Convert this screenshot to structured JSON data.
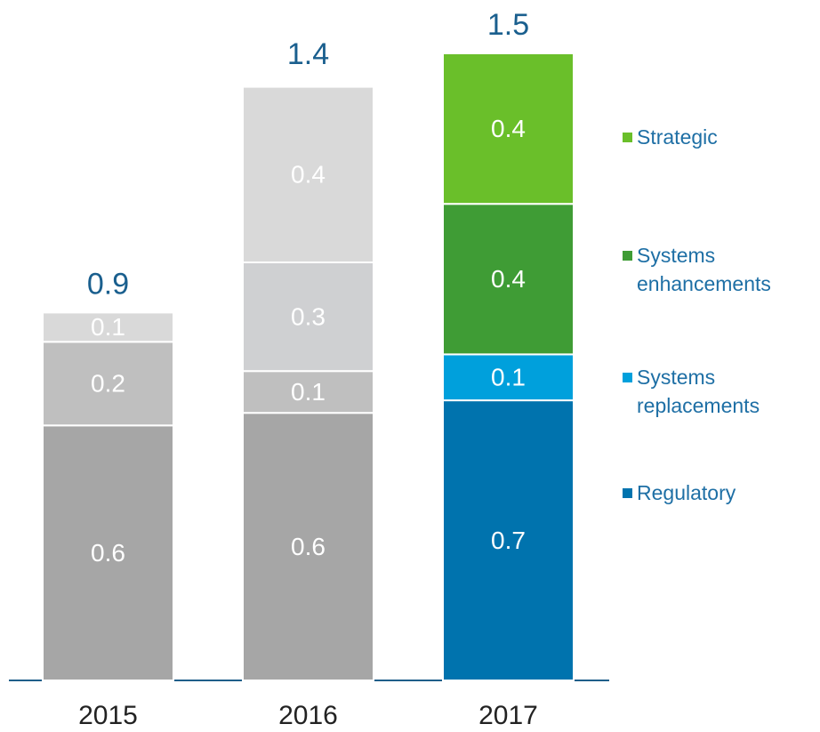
{
  "chart_data": {
    "type": "stacked_bar",
    "categories": [
      "2015",
      "2016",
      "2017"
    ],
    "ylim": [
      0,
      1.6
    ],
    "series": [
      {
        "name": "Regulatory",
        "color": "#0073ae",
        "colors": [
          "#a6a6a6",
          "#a6a6a6",
          "#0073ae"
        ],
        "values": [
          0.61,
          0.64,
          0.67
        ],
        "value_labels": [
          "0.6",
          "0.6",
          "0.7"
        ]
      },
      {
        "name": "Systems replacements",
        "color": "#00a0dc",
        "colors": [
          "#bfbfbf",
          "#bfbfbf",
          "#00a0dc"
        ],
        "values": [
          0.2,
          0.1,
          0.11
        ],
        "value_labels": [
          "0.2",
          "0.1",
          "0.1"
        ]
      },
      {
        "name": "Systems enhancements",
        "color": "#3f9c35",
        "colors": [
          "#d9d9d9",
          "#cfd0d2",
          "#3f9c35"
        ],
        "values": [
          0.07,
          0.26,
          0.36
        ],
        "value_labels": [
          "0.1",
          "0.3",
          "0.4"
        ]
      },
      {
        "name": "Strategic",
        "color": "#6abf2a",
        "colors": [
          null,
          "#d9d9d9",
          "#6abf2a"
        ],
        "values": [
          null,
          0.42,
          0.36
        ],
        "value_labels": [
          null,
          "0.4",
          "0.4"
        ]
      }
    ],
    "totals": [
      0.88,
      1.43,
      1.5
    ],
    "total_labels": [
      "0.9",
      "1.4",
      "1.5"
    ]
  }
}
